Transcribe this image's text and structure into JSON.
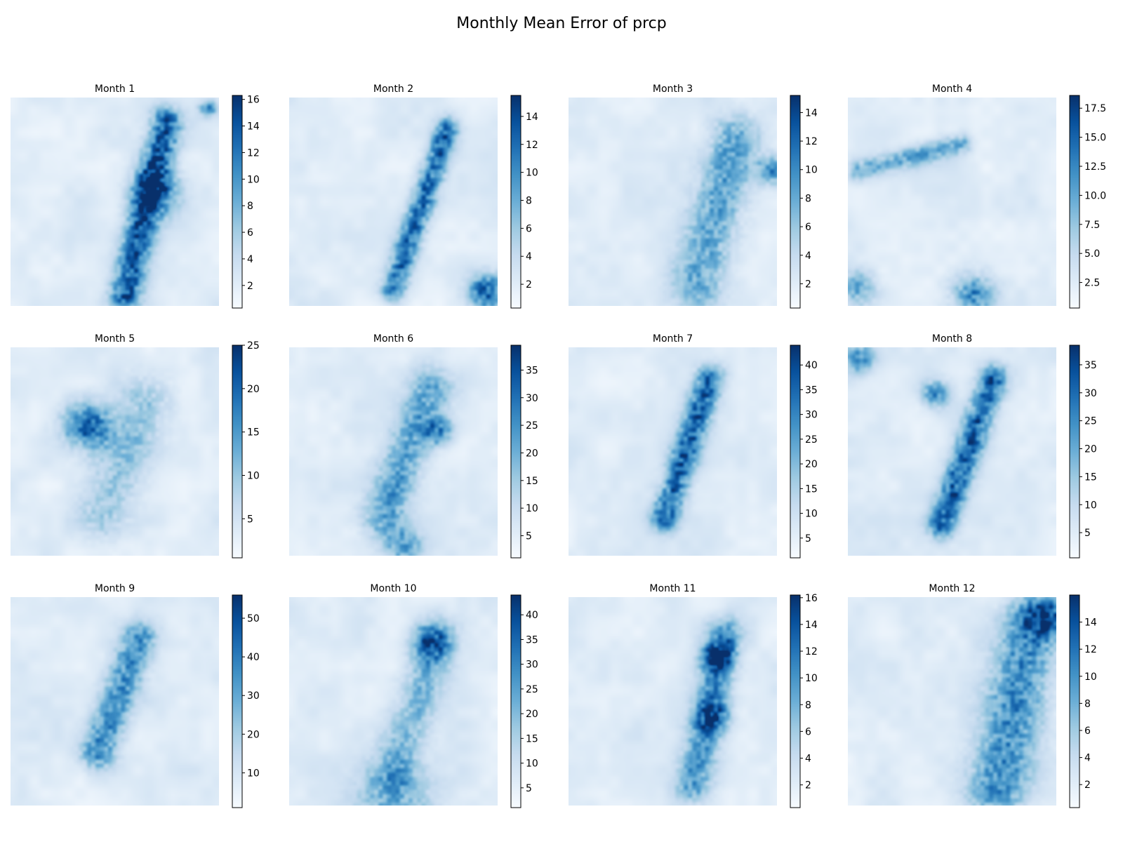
{
  "figure": {
    "title": "Monthly Mean Error of prcp",
    "colormap": "Blues",
    "colormap_low": "#f7fbff",
    "colormap_high": "#08306b"
  },
  "chart_data": [
    {
      "type": "heatmap",
      "title": "Month 1",
      "colorbar": {
        "range": [
          0.3,
          16.3
        ],
        "ticks": [
          2,
          4,
          6,
          8,
          10,
          12,
          14,
          16
        ],
        "tick_labels": [
          "2",
          "4",
          "6",
          "8",
          "10",
          "12",
          "14",
          "16"
        ]
      },
      "features": [
        {
          "kind": "band",
          "from": [
            0.55,
            0.95
          ],
          "to": [
            0.75,
            0.12
          ],
          "width": 0.09,
          "intensity": 0.8
        },
        {
          "kind": "blob",
          "center": [
            0.7,
            0.45
          ],
          "radius": 0.08,
          "intensity": 0.6
        },
        {
          "kind": "blob",
          "center": [
            0.95,
            0.05
          ],
          "radius": 0.03,
          "intensity": 0.6
        }
      ]
    },
    {
      "type": "heatmap",
      "title": "Month 2",
      "colorbar": {
        "range": [
          0.3,
          15.5
        ],
        "ticks": [
          2,
          4,
          6,
          8,
          10,
          12,
          14
        ],
        "tick_labels": [
          "2",
          "4",
          "6",
          "8",
          "10",
          "12",
          "14"
        ]
      },
      "features": [
        {
          "kind": "band",
          "from": [
            0.5,
            0.92
          ],
          "to": [
            0.76,
            0.15
          ],
          "width": 0.07,
          "intensity": 0.75
        },
        {
          "kind": "blob",
          "center": [
            0.95,
            0.93
          ],
          "radius": 0.06,
          "intensity": 0.8
        }
      ]
    },
    {
      "type": "heatmap",
      "title": "Month 3",
      "colorbar": {
        "range": [
          0.3,
          15.2
        ],
        "ticks": [
          2,
          4,
          6,
          8,
          10,
          12,
          14
        ],
        "tick_labels": [
          "2",
          "4",
          "6",
          "8",
          "10",
          "12",
          "14"
        ]
      },
      "features": [
        {
          "kind": "band",
          "from": [
            0.62,
            0.9
          ],
          "to": [
            0.8,
            0.2
          ],
          "width": 0.14,
          "intensity": 0.5
        },
        {
          "kind": "blob",
          "center": [
            0.98,
            0.35
          ],
          "radius": 0.05,
          "intensity": 0.6
        }
      ]
    },
    {
      "type": "heatmap",
      "title": "Month 4",
      "colorbar": {
        "range": [
          0.3,
          18.6
        ],
        "ticks": [
          2.5,
          5.0,
          7.5,
          10.0,
          12.5,
          15.0,
          17.5
        ],
        "tick_labels": [
          "2.5",
          "5.0",
          "7.5",
          "10.0",
          "12.5",
          "15.0",
          "17.5"
        ]
      },
      "features": [
        {
          "kind": "band",
          "from": [
            0.05,
            0.35
          ],
          "to": [
            0.55,
            0.22
          ],
          "width": 0.06,
          "intensity": 0.45
        },
        {
          "kind": "blob",
          "center": [
            0.6,
            0.95
          ],
          "radius": 0.07,
          "intensity": 0.6
        },
        {
          "kind": "blob",
          "center": [
            0.05,
            0.92
          ],
          "radius": 0.06,
          "intensity": 0.5
        }
      ]
    },
    {
      "type": "heatmap",
      "title": "Month 5",
      "colorbar": {
        "range": [
          0.5,
          25
        ],
        "ticks": [
          5,
          10,
          15,
          20,
          25
        ],
        "tick_labels": [
          "5",
          "10",
          "15",
          "20",
          "25"
        ]
      },
      "features": [
        {
          "kind": "blob",
          "center": [
            0.37,
            0.38
          ],
          "radius": 0.08,
          "intensity": 0.75
        },
        {
          "kind": "band",
          "from": [
            0.45,
            0.8
          ],
          "to": [
            0.65,
            0.25
          ],
          "width": 0.15,
          "intensity": 0.3
        }
      ]
    },
    {
      "type": "heatmap",
      "title": "Month 6",
      "colorbar": {
        "range": [
          1,
          39.5
        ],
        "ticks": [
          5,
          10,
          15,
          20,
          25,
          30,
          35
        ],
        "tick_labels": [
          "5",
          "10",
          "15",
          "20",
          "25",
          "30",
          "35"
        ]
      },
      "features": [
        {
          "kind": "band",
          "from": [
            0.45,
            0.82
          ],
          "to": [
            0.68,
            0.2
          ],
          "width": 0.12,
          "intensity": 0.5
        },
        {
          "kind": "blob",
          "center": [
            0.72,
            0.4
          ],
          "radius": 0.05,
          "intensity": 0.5
        },
        {
          "kind": "blob",
          "center": [
            0.55,
            0.95
          ],
          "radius": 0.06,
          "intensity": 0.5
        }
      ]
    },
    {
      "type": "heatmap",
      "title": "Month 7",
      "colorbar": {
        "range": [
          1,
          44
        ],
        "ticks": [
          5,
          10,
          15,
          20,
          25,
          30,
          35,
          40
        ],
        "tick_labels": [
          "5",
          "10",
          "15",
          "20",
          "25",
          "30",
          "35",
          "40"
        ]
      },
      "features": [
        {
          "kind": "band",
          "from": [
            0.46,
            0.82
          ],
          "to": [
            0.68,
            0.15
          ],
          "width": 0.08,
          "intensity": 0.75
        }
      ]
    },
    {
      "type": "heatmap",
      "title": "Month 8",
      "colorbar": {
        "range": [
          0.5,
          38.5
        ],
        "ticks": [
          5,
          10,
          15,
          20,
          25,
          30,
          35
        ],
        "tick_labels": [
          "5",
          "10",
          "15",
          "20",
          "25",
          "30",
          "35"
        ]
      },
      "features": [
        {
          "kind": "band",
          "from": [
            0.45,
            0.85
          ],
          "to": [
            0.7,
            0.15
          ],
          "width": 0.08,
          "intensity": 0.8
        },
        {
          "kind": "blob",
          "center": [
            0.42,
            0.22
          ],
          "radius": 0.05,
          "intensity": 0.55
        },
        {
          "kind": "blob",
          "center": [
            0.05,
            0.05
          ],
          "radius": 0.05,
          "intensity": 0.6
        }
      ]
    },
    {
      "type": "heatmap",
      "title": "Month 9",
      "colorbar": {
        "range": [
          1,
          56
        ],
        "ticks": [
          10,
          20,
          30,
          40,
          50
        ],
        "tick_labels": [
          "10",
          "20",
          "30",
          "40",
          "50"
        ]
      },
      "features": [
        {
          "kind": "band",
          "from": [
            0.42,
            0.75
          ],
          "to": [
            0.62,
            0.2
          ],
          "width": 0.1,
          "intensity": 0.6
        }
      ]
    },
    {
      "type": "heatmap",
      "title": "Month 10",
      "colorbar": {
        "range": [
          1,
          44
        ],
        "ticks": [
          5,
          10,
          15,
          20,
          25,
          30,
          35,
          40
        ],
        "tick_labels": [
          "5",
          "10",
          "15",
          "20",
          "25",
          "30",
          "35",
          "40"
        ]
      },
      "features": [
        {
          "kind": "band",
          "from": [
            0.5,
            0.85
          ],
          "to": [
            0.72,
            0.2
          ],
          "width": 0.12,
          "intensity": 0.35
        },
        {
          "kind": "blob",
          "center": [
            0.68,
            0.22
          ],
          "radius": 0.06,
          "intensity": 0.6
        },
        {
          "kind": "blob",
          "center": [
            0.5,
            0.97
          ],
          "radius": 0.12,
          "intensity": 0.4
        }
      ]
    },
    {
      "type": "heatmap",
      "title": "Month 11",
      "colorbar": {
        "range": [
          0.3,
          16.2
        ],
        "ticks": [
          2,
          4,
          6,
          8,
          10,
          12,
          14,
          16
        ],
        "tick_labels": [
          "2",
          "4",
          "6",
          "8",
          "10",
          "12",
          "14",
          "16"
        ]
      },
      "features": [
        {
          "kind": "band",
          "from": [
            0.6,
            0.9
          ],
          "to": [
            0.75,
            0.18
          ],
          "width": 0.1,
          "intensity": 0.55
        },
        {
          "kind": "blob",
          "center": [
            0.72,
            0.28
          ],
          "radius": 0.05,
          "intensity": 0.7
        },
        {
          "kind": "blob",
          "center": [
            0.7,
            0.58
          ],
          "radius": 0.05,
          "intensity": 0.6
        }
      ]
    },
    {
      "type": "heatmap",
      "title": "Month 12",
      "colorbar": {
        "range": [
          0.3,
          16.0
        ],
        "ticks": [
          2,
          4,
          6,
          8,
          10,
          12,
          14
        ],
        "tick_labels": [
          "2",
          "4",
          "6",
          "8",
          "10",
          "12",
          "14"
        ]
      },
      "features": [
        {
          "kind": "band",
          "from": [
            0.72,
            0.92
          ],
          "to": [
            0.88,
            0.15
          ],
          "width": 0.17,
          "intensity": 0.6
        },
        {
          "kind": "blob",
          "center": [
            0.95,
            0.08
          ],
          "radius": 0.07,
          "intensity": 0.65
        }
      ]
    }
  ]
}
